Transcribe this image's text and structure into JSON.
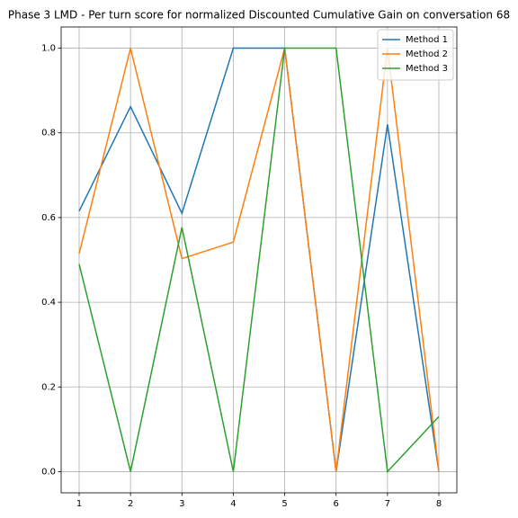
{
  "chart_data": {
    "type": "line",
    "title": "Phase 3 LMD - Per turn score for normalized Discounted Cumulative Gain on conversation 68",
    "x": [
      1,
      2,
      3,
      4,
      5,
      6,
      7,
      8
    ],
    "series": [
      {
        "name": "Method 1",
        "color": "#1f77b4",
        "values": [
          0.615,
          0.862,
          0.61,
          1.0,
          1.0,
          0.0,
          0.82,
          0.0
        ]
      },
      {
        "name": "Method 2",
        "color": "#ff7f0e",
        "values": [
          0.515,
          1.0,
          0.503,
          0.542,
          1.0,
          0.0,
          1.0,
          0.0
        ]
      },
      {
        "name": "Method 3",
        "color": "#2ca02c",
        "values": [
          0.49,
          0.0,
          0.577,
          0.0,
          1.0,
          1.0,
          0.0,
          0.13
        ]
      }
    ],
    "xlim": [
      0.65,
      8.35
    ],
    "xticks": [
      1,
      2,
      3,
      4,
      5,
      6,
      7,
      8
    ],
    "ylim": [
      -0.05,
      1.05
    ],
    "yticks": [
      {
        "value": 0,
        "label": "0.0"
      },
      0.2,
      0.4,
      0.6,
      0.8,
      {
        "value": 1,
        "label": "1.0"
      }
    ],
    "grid": true,
    "legend": "upper right"
  }
}
